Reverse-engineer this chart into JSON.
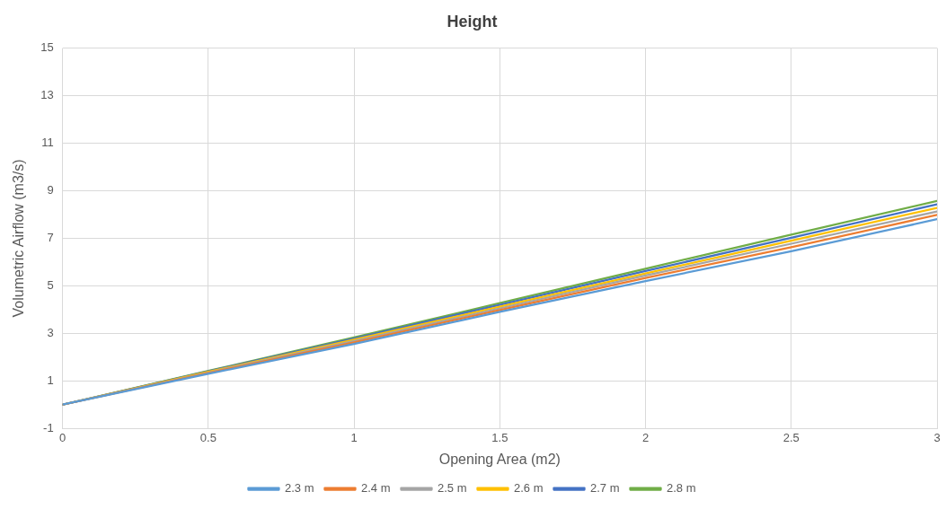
{
  "chart_data": {
    "type": "line",
    "title": "Height",
    "xlabel": "Opening Area (m2)",
    "ylabel": "Volumetric Airflow (m3/s)",
    "x": [
      0,
      0.5,
      1,
      1.5,
      2,
      2.5,
      3
    ],
    "xlim": [
      0,
      3
    ],
    "xticks": [
      0,
      0.5,
      1,
      1.5,
      2,
      2.5,
      3
    ],
    "ylim": [
      -1,
      15
    ],
    "yticks": [
      -1,
      1,
      3,
      5,
      7,
      9,
      11,
      13,
      15
    ],
    "grid": true,
    "legend": "bottom",
    "marker": "none",
    "line_style": "solid",
    "series": [
      {
        "name": "2.3 m",
        "color": "#5b9bd5",
        "values": [
          0,
          1.3,
          2.55,
          3.9,
          5.2,
          6.45,
          7.8
        ]
      },
      {
        "name": "2.4 m",
        "color": "#ed7d31",
        "values": [
          0,
          1.33,
          2.62,
          3.98,
          5.33,
          6.62,
          7.98
        ]
      },
      {
        "name": "2.5 m",
        "color": "#a5a5a5",
        "values": [
          0,
          1.35,
          2.68,
          4.05,
          5.43,
          6.77,
          8.13
        ]
      },
      {
        "name": "2.6 m",
        "color": "#ffc000",
        "values": [
          0,
          1.38,
          2.73,
          4.12,
          5.52,
          6.9,
          8.28
        ]
      },
      {
        "name": "2.7 m",
        "color": "#4472c4",
        "values": [
          0,
          1.4,
          2.78,
          4.2,
          5.62,
          7.02,
          8.43
        ]
      },
      {
        "name": "2.8 m",
        "color": "#70ad47",
        "values": [
          0,
          1.42,
          2.83,
          4.27,
          5.72,
          7.15,
          8.57
        ]
      }
    ]
  }
}
